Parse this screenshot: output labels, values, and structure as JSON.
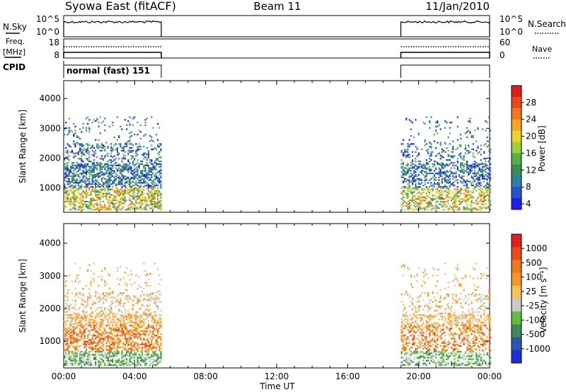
{
  "header": {
    "title": "Syowa East (fitACF)",
    "beam": "Beam 11",
    "date": "11/Jan/2010"
  },
  "panels": {
    "nsky": {
      "label": "N.Sky",
      "ticks": [
        "10^5",
        "10^0"
      ]
    },
    "nsearch": {
      "label": "N.Search",
      "ticks": [
        "10^5",
        "10^0"
      ]
    },
    "freq": {
      "label_top": "Freq.",
      "label_bottom": "[MHz]",
      "ticks": [
        "18",
        "8"
      ]
    },
    "nave": {
      "label": "Nave",
      "ticks": [
        "60",
        "0"
      ]
    },
    "cpid": {
      "label": "CPID",
      "mode": "normal (fast) 151"
    }
  },
  "chart_data": [
    {
      "type": "line",
      "name": "operation-status",
      "x": [
        "00:00",
        "05:30",
        "19:00",
        "24:00"
      ],
      "on_intervals": [
        [
          "00:00",
          "05:30"
        ],
        [
          "19:00",
          "24:00"
        ]
      ],
      "series": [
        "N.Sky",
        "N.Search",
        "Freq.",
        "Nave"
      ]
    },
    {
      "type": "heatmap",
      "name": "power-rti",
      "xlabel": "Time UT",
      "ylabel": "Slant Range [km]",
      "x_ticks": [
        "00:00",
        "04:00",
        "08:00",
        "12:00",
        "16:00",
        "20:00",
        "00:00"
      ],
      "y_ticks": [
        1000,
        2000,
        3000,
        4000
      ],
      "xlim_hours": [
        0,
        24
      ],
      "ylim": [
        180,
        4600
      ],
      "data_intervals_hours": [
        [
          0,
          5.5
        ],
        [
          19,
          24
        ]
      ],
      "colorbar": {
        "label": "Power [dB]",
        "ticks": [
          "28",
          "24",
          "20",
          "16",
          "12",
          "8",
          "4"
        ],
        "colors": [
          "#1e1ef0",
          "#2a55c8",
          "#2e7fa8",
          "#3c8c5a",
          "#58b048",
          "#9ccf3c",
          "#e6d22a",
          "#f5a623",
          "#f07818",
          "#e8481e",
          "#e01e1e"
        ]
      }
    },
    {
      "type": "heatmap",
      "name": "velocity-rti",
      "xlabel": "Time UT",
      "ylabel": "Slant Range [km]",
      "x_ticks": [
        "00:00",
        "04:00",
        "08:00",
        "12:00",
        "16:00",
        "20:00",
        "00:00"
      ],
      "y_ticks": [
        1000,
        2000,
        3000,
        4000
      ],
      "xlim_hours": [
        0,
        24
      ],
      "ylim": [
        180,
        4600
      ],
      "data_intervals_hours": [
        [
          0,
          5.5
        ],
        [
          19,
          24
        ]
      ],
      "colorbar": {
        "label": "Velocity [m s⁻¹]",
        "ticks": [
          "1000",
          "500",
          "100",
          "25",
          "-25",
          "-100",
          "-500",
          "-1000"
        ],
        "colors": [
          "#1e2fd6",
          "#2e55b4",
          "#3e8a5a",
          "#5fbf3a",
          "#c8c8c8",
          "#f5c25a",
          "#f59a2a",
          "#f07a1a",
          "#e84a1e",
          "#e01e1e"
        ]
      }
    }
  ]
}
